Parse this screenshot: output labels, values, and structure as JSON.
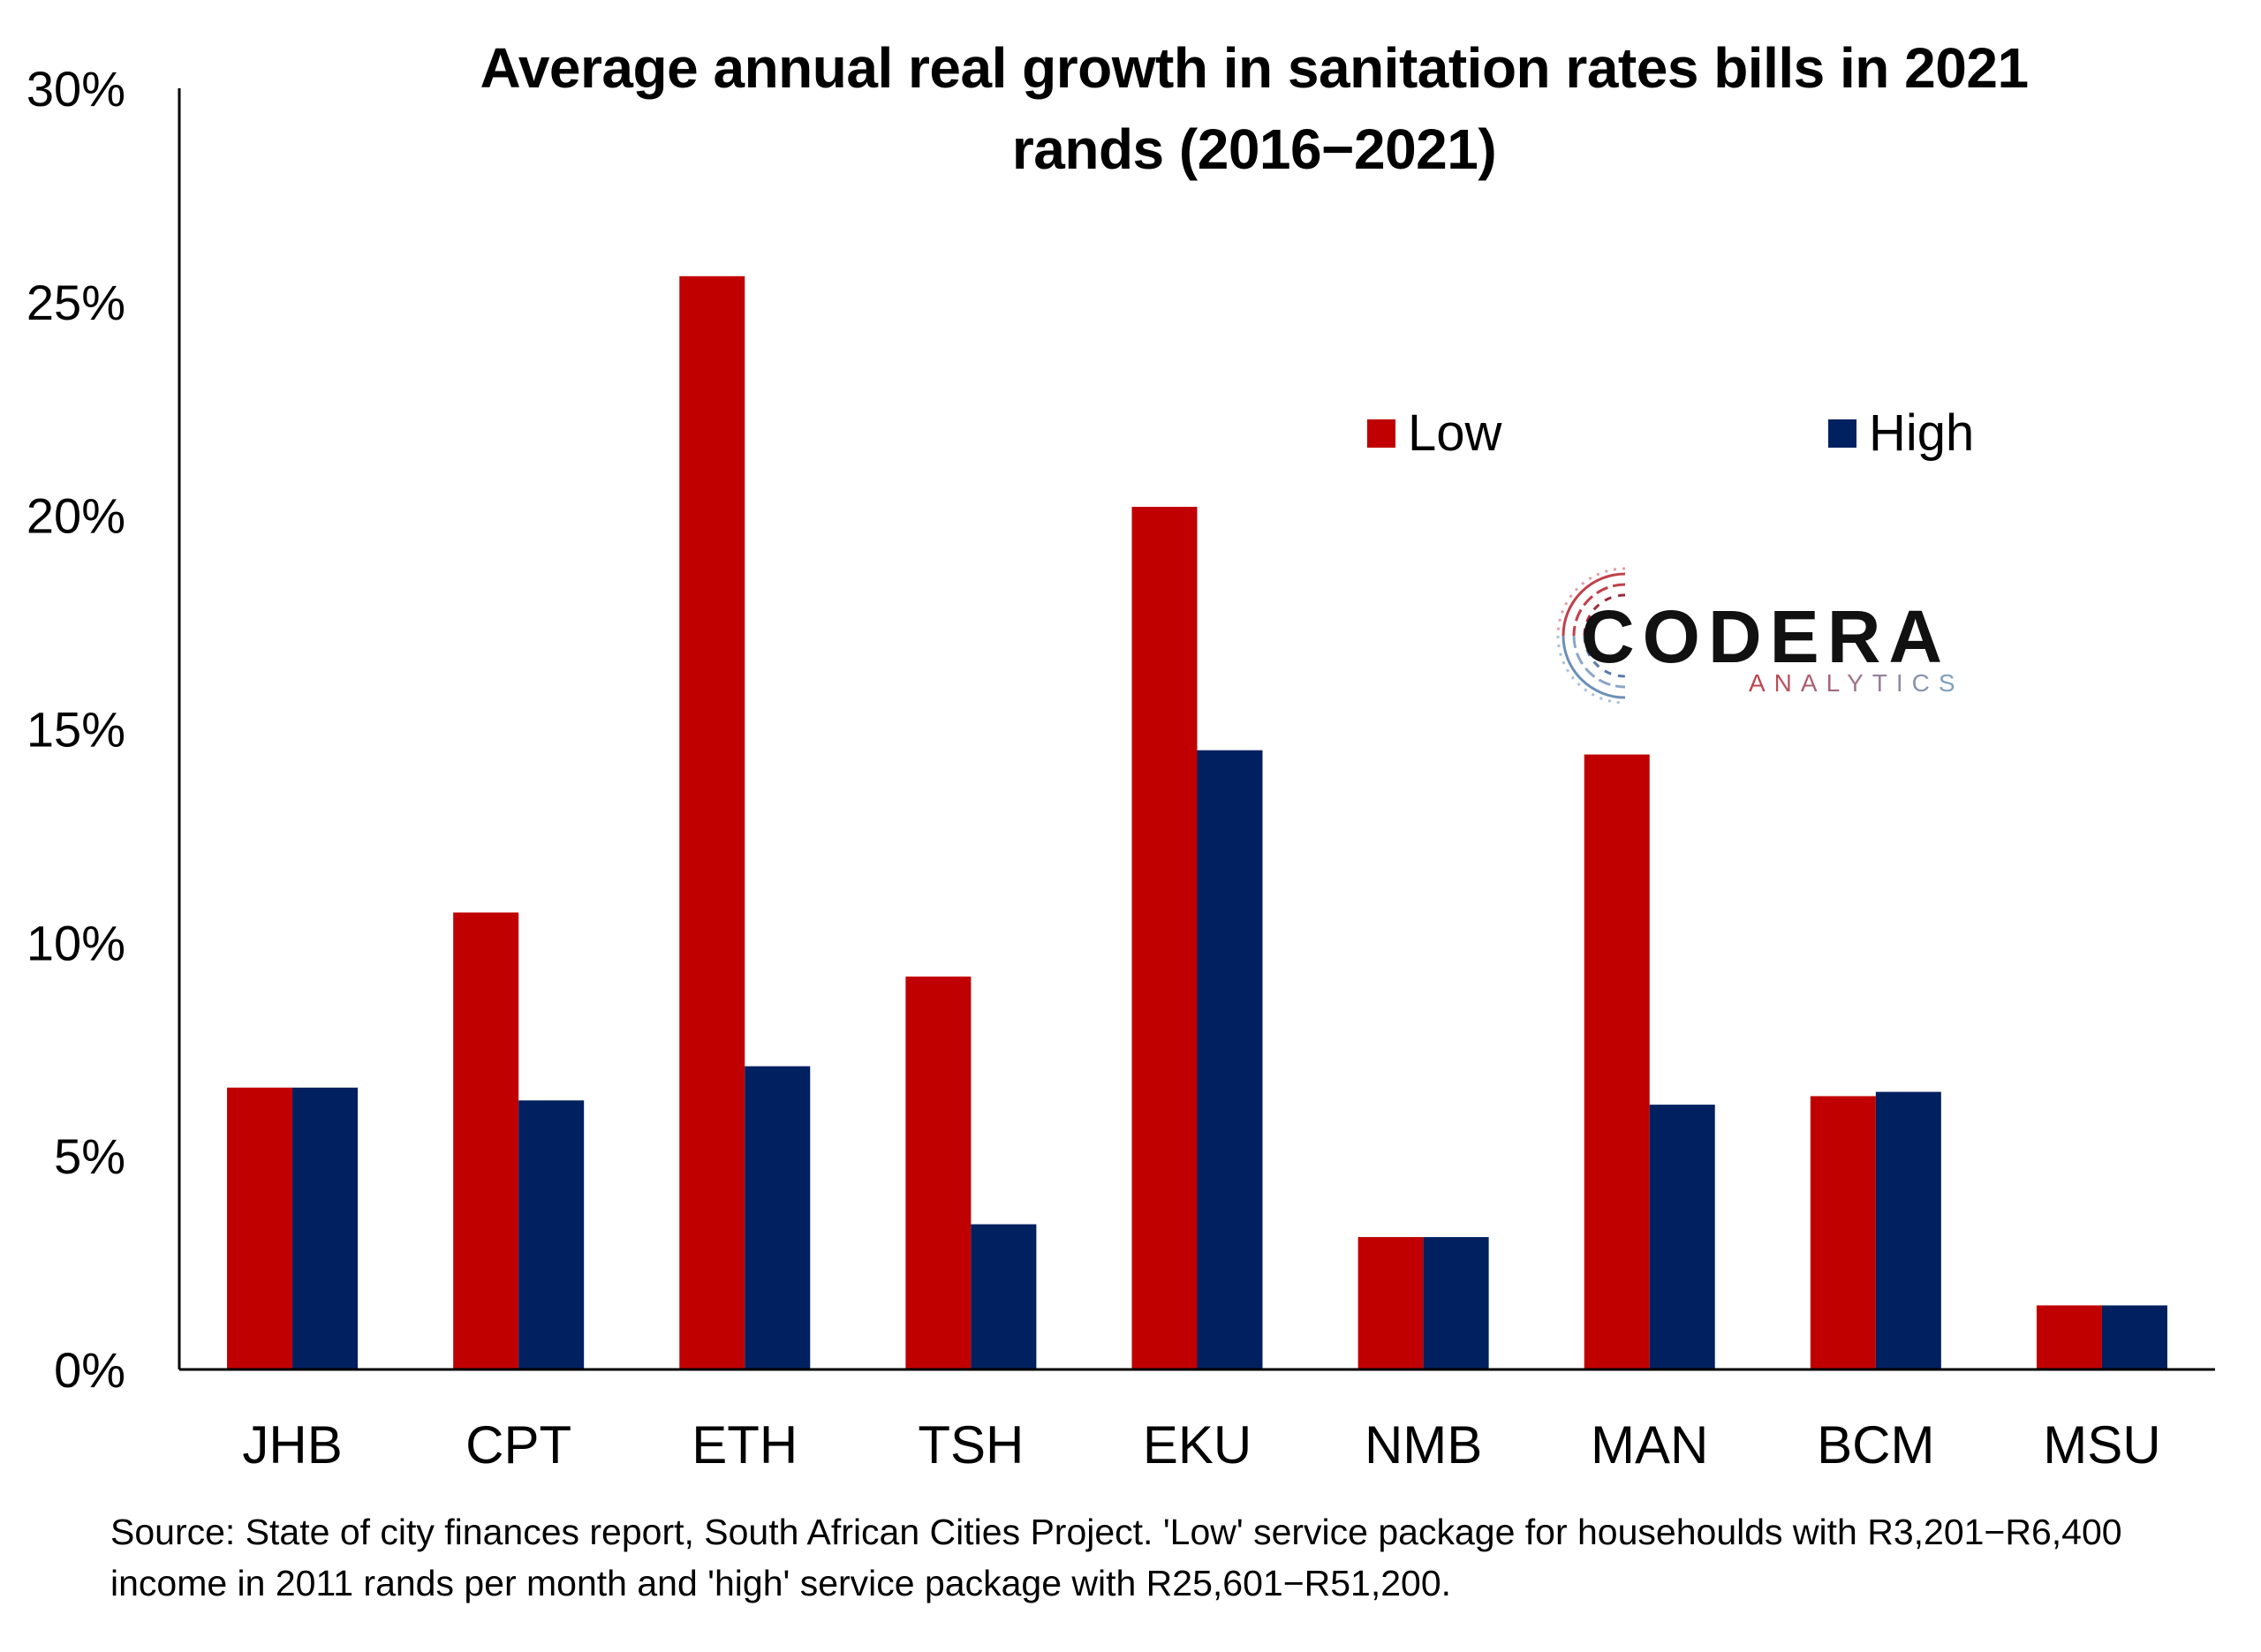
{
  "chart_data": {
    "type": "bar",
    "title_lines": [
      "Average annual real growth in sanitation rates bills in 2021",
      "rands (2016−2021)"
    ],
    "categories": [
      "JHB",
      "CPT",
      "ETH",
      "TSH",
      "EKU",
      "NMB",
      "MAN",
      "BCM",
      "MSU"
    ],
    "series": [
      {
        "name": "Low",
        "color": "#C00000",
        "values": [
          6.6,
          10.7,
          25.6,
          9.2,
          20.2,
          3.1,
          14.4,
          6.4,
          1.5
        ]
      },
      {
        "name": "High",
        "color": "#002060",
        "values": [
          6.6,
          6.3,
          7.1,
          3.4,
          14.5,
          3.1,
          6.2,
          6.5,
          1.5
        ]
      }
    ],
    "ylim": [
      0,
      30
    ],
    "yticks": [
      0,
      5,
      10,
      15,
      20,
      25,
      30
    ],
    "ytick_labels": [
      "0%",
      "5%",
      "10%",
      "15%",
      "20%",
      "25%",
      "30%"
    ],
    "xlabel": "",
    "ylabel": "",
    "grid": false,
    "legend_position": "top-right"
  },
  "logo": {
    "word": "CODERA",
    "sub": "ANALYTICS"
  },
  "source_note": "Source: State of city finances report, South African Cities Project. 'Low' service package for househoulds with R3,201−R6,400 income in 2011 rands per month and 'high' service package with R25,601−R51,200."
}
